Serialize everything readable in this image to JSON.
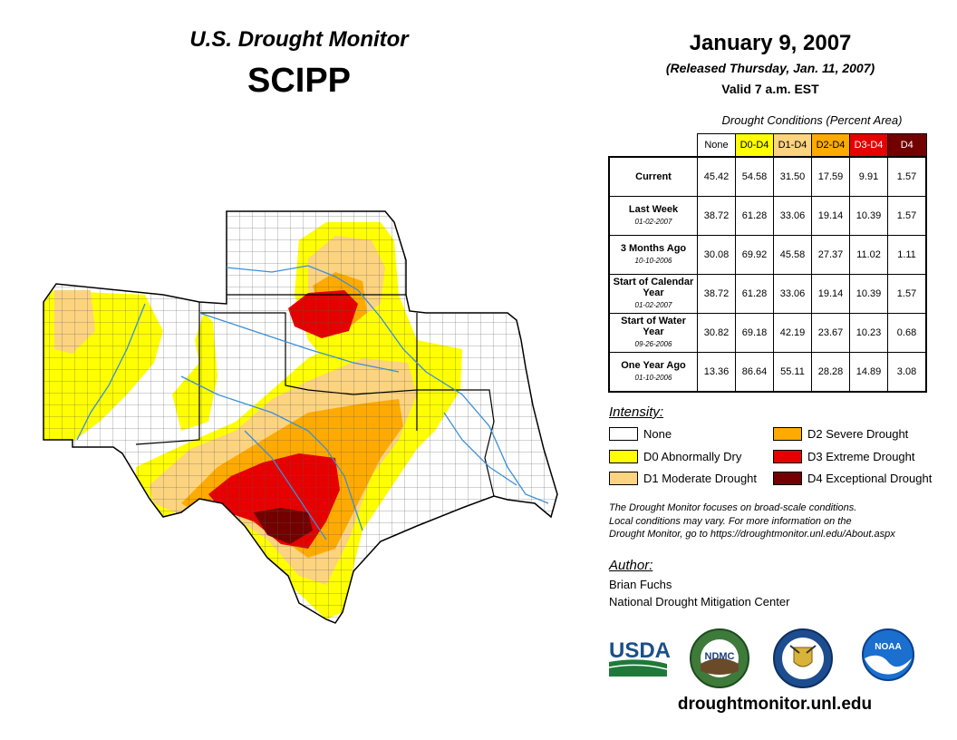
{
  "header": {
    "title": "U.S. Drought Monitor",
    "region": "SCIPP",
    "date": "January 9, 2007",
    "released": "(Released Thursday, Jan. 11, 2007)",
    "valid": "Valid 7 a.m. EST"
  },
  "table": {
    "caption": "Drought Conditions (Percent Area)",
    "columns": [
      {
        "label": "None",
        "color": "#ffffff",
        "text_color": "#000000"
      },
      {
        "label": "D0-D4",
        "color": "#ffff00",
        "text_color": "#000000"
      },
      {
        "label": "D1-D4",
        "color": "#fcd37f",
        "text_color": "#000000"
      },
      {
        "label": "D2-D4",
        "color": "#ffaa00",
        "text_color": "#000000"
      },
      {
        "label": "D3-D4",
        "color": "#e60000",
        "text_color": "#ffffff"
      },
      {
        "label": "D4",
        "color": "#730000",
        "text_color": "#ffffff"
      }
    ],
    "rows": [
      {
        "label": "Current",
        "sub": "",
        "values": [
          "45.42",
          "54.58",
          "31.50",
          "17.59",
          "9.91",
          "1.57"
        ]
      },
      {
        "label": "Last Week",
        "sub": "01-02-2007",
        "values": [
          "38.72",
          "61.28",
          "33.06",
          "19.14",
          "10.39",
          "1.57"
        ]
      },
      {
        "label": "3 Months Ago",
        "sub": "10-10-2006",
        "values": [
          "30.08",
          "69.92",
          "45.58",
          "27.37",
          "11.02",
          "1.11"
        ]
      },
      {
        "label": "Start of Calendar Year",
        "sub": "01-02-2007",
        "values": [
          "38.72",
          "61.28",
          "33.06",
          "19.14",
          "10.39",
          "1.57"
        ]
      },
      {
        "label": "Start of Water Year",
        "sub": "09-26-2006",
        "values": [
          "30.82",
          "69.18",
          "42.19",
          "23.67",
          "10.23",
          "0.68"
        ]
      },
      {
        "label": "One Year Ago",
        "sub": "01-10-2006",
        "values": [
          "13.36",
          "86.64",
          "55.11",
          "28.28",
          "14.89",
          "3.08"
        ]
      }
    ]
  },
  "legend": {
    "title": "Intensity:",
    "items": [
      {
        "label": "None",
        "color": "#ffffff"
      },
      {
        "label": "D0 Abnormally Dry",
        "color": "#ffff00"
      },
      {
        "label": "D1 Moderate Drought",
        "color": "#fcd37f"
      },
      {
        "label": "D2 Severe Drought",
        "color": "#ffaa00"
      },
      {
        "label": "D3 Extreme Drought",
        "color": "#e60000"
      },
      {
        "label": "D4 Exceptional Drought",
        "color": "#730000"
      }
    ]
  },
  "note": {
    "line1": "The Drought Monitor focuses on broad-scale conditions.",
    "line2": "Local conditions may vary. For more information on the",
    "line3": "Drought Monitor, go to https://droughtmonitor.unl.edu/About.aspx"
  },
  "author": {
    "title": "Author:",
    "name": "Brian Fuchs",
    "org": "National Drought Mitigation Center"
  },
  "logos": {
    "usda": "USDA",
    "ndmc": "NDMC",
    "noaa": "NOAA"
  },
  "website": "droughtmonitor.unl.edu"
}
